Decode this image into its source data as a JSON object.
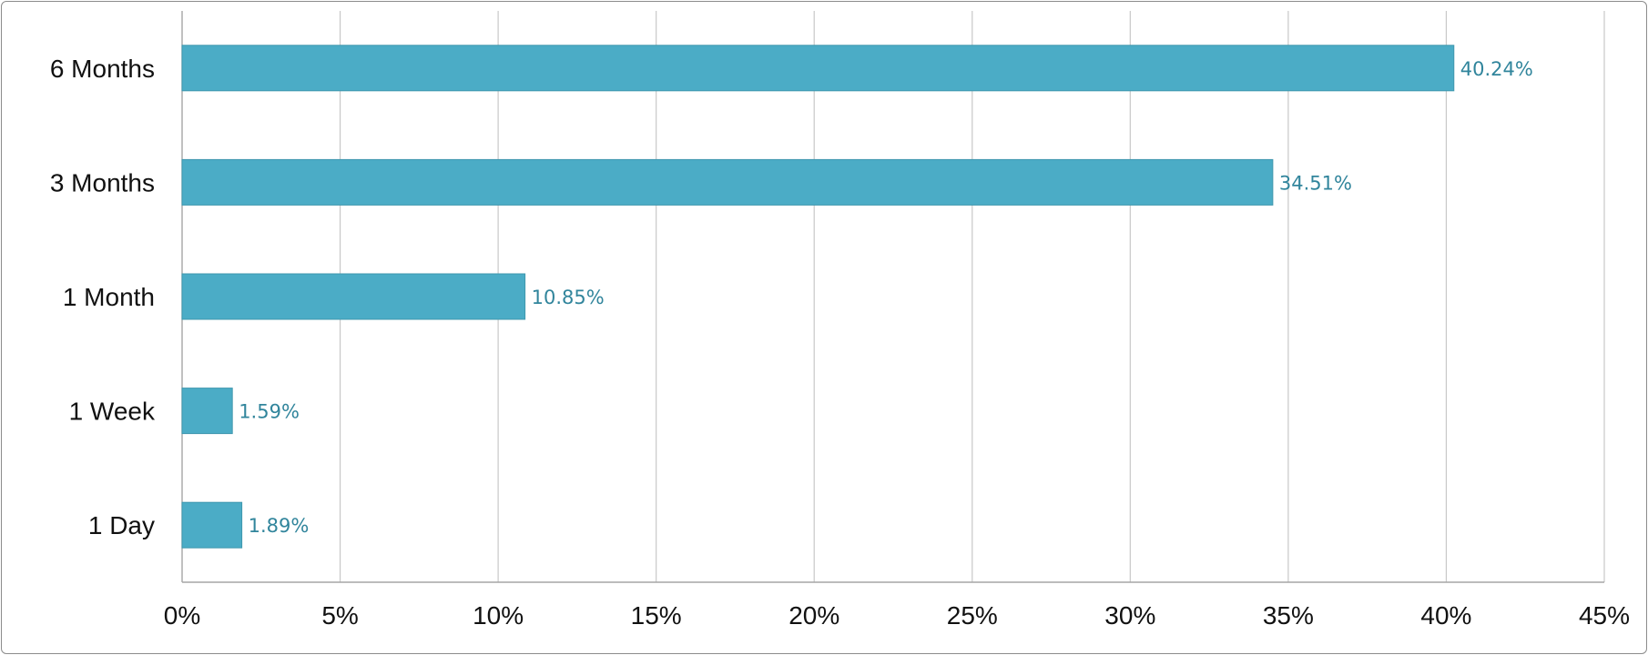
{
  "chart_data": {
    "type": "bar",
    "orientation": "horizontal",
    "categories": [
      "6 Months",
      "3 Months",
      "1 Month",
      "1 Week",
      "1 Day"
    ],
    "values": [
      40.24,
      34.51,
      10.85,
      1.59,
      1.89
    ],
    "value_labels": [
      "40.24%",
      "34.51%",
      "10.85%",
      "1.59%",
      "1.89%"
    ],
    "x_ticks": [
      "0%",
      "5%",
      "10%",
      "15%",
      "20%",
      "25%",
      "30%",
      "35%",
      "40%",
      "45%"
    ],
    "xlim": [
      0,
      45
    ],
    "x_tick_step": 5,
    "grid": "vertical",
    "title": "",
    "xlabel": "",
    "ylabel": "",
    "colors": {
      "bar": "#4BACC6",
      "bar_edge": "#3f97ae",
      "data_label": "#31859c",
      "grid": "#c8c8c8",
      "axis": "#a6a6a6"
    }
  }
}
